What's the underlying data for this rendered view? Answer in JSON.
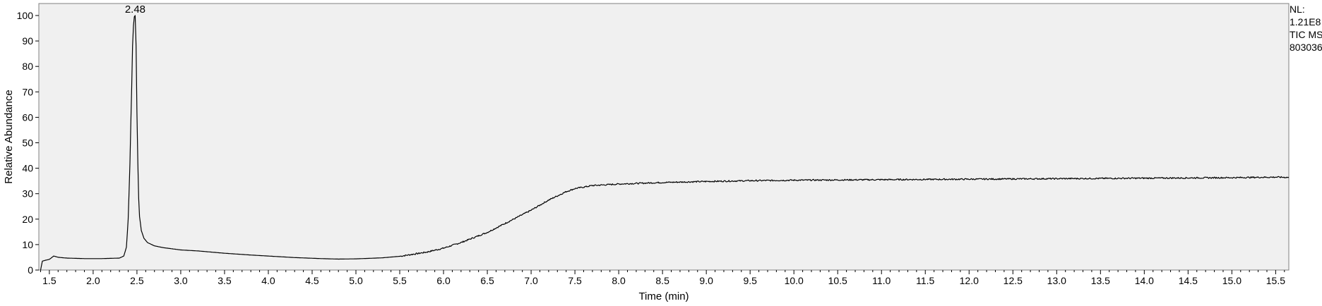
{
  "chart_data": {
    "type": "line",
    "title": "",
    "xlabel": "Time (min)",
    "ylabel": "Relative Abundance",
    "xlim": [
      1.38,
      15.65
    ],
    "ylim": [
      0,
      100
    ],
    "x_ticks": [
      1.5,
      2.0,
      2.5,
      3.0,
      3.5,
      4.0,
      4.5,
      5.0,
      5.5,
      6.0,
      6.5,
      7.0,
      7.5,
      8.0,
      8.5,
      9.0,
      9.5,
      10.0,
      10.5,
      11.0,
      11.5,
      12.0,
      12.5,
      13.0,
      13.5,
      14.0,
      14.5,
      15.0,
      15.5
    ],
    "x_tick_labels": [
      "1.5",
      "2.0",
      "2.5",
      "3.0",
      "3.5",
      "4.0",
      "4.5",
      "5.0",
      "5.5",
      "6.0",
      "6.5",
      "7.0",
      "7.5",
      "8.0",
      "8.5",
      "9.0",
      "9.5",
      "10.0",
      "10.5",
      "11.0",
      "11.5",
      "12.0",
      "12.5",
      "13.0",
      "13.5",
      "14.0",
      "14.5",
      "15.0",
      "15.5"
    ],
    "y_ticks": [
      0,
      10,
      20,
      30,
      40,
      50,
      60,
      70,
      80,
      90,
      100
    ],
    "y_tick_labels": [
      "0",
      "10",
      "20",
      "30",
      "40",
      "50",
      "60",
      "70",
      "80",
      "90",
      "100"
    ],
    "grid": false,
    "series": [
      {
        "x": [
          1.4,
          1.42,
          1.45,
          1.5,
          1.55,
          1.6,
          1.7,
          1.8,
          1.9,
          2.0,
          2.1,
          2.2,
          2.3,
          2.35,
          2.38,
          2.4,
          2.42,
          2.44,
          2.45,
          2.46,
          2.47,
          2.48,
          2.49,
          2.5,
          2.51,
          2.52,
          2.53,
          2.55,
          2.58,
          2.62,
          2.7,
          2.8,
          3.0,
          3.2,
          3.5,
          3.8,
          4.0,
          4.3,
          4.6,
          4.8,
          5.0,
          5.3,
          5.5,
          5.8,
          6.0,
          6.2,
          6.5,
          6.8,
          7.0,
          7.2,
          7.4,
          7.5,
          7.7,
          8.0,
          8.5,
          9.0,
          9.5,
          10.0,
          10.5,
          11.0,
          11.5,
          12.0,
          12.5,
          13.0,
          13.5,
          14.0,
          14.5,
          15.0,
          15.5,
          15.65
        ],
        "y": [
          0.0,
          3.5,
          3.8,
          4.2,
          5.5,
          5.0,
          4.7,
          4.6,
          4.5,
          4.5,
          4.5,
          4.6,
          4.7,
          5.5,
          9.0,
          20.0,
          42.0,
          72.0,
          88.0,
          96.0,
          99.5,
          100.0,
          88.0,
          62.0,
          42.0,
          28.0,
          21.0,
          15.5,
          12.5,
          10.8,
          9.5,
          8.8,
          7.9,
          7.5,
          6.6,
          5.9,
          5.5,
          4.9,
          4.5,
          4.3,
          4.4,
          4.8,
          5.4,
          7.0,
          8.6,
          10.8,
          14.8,
          20.0,
          23.5,
          27.5,
          30.8,
          32.0,
          33.2,
          33.8,
          34.4,
          34.8,
          35.1,
          35.3,
          35.4,
          35.5,
          35.6,
          35.7,
          35.8,
          35.9,
          36.0,
          36.1,
          36.2,
          36.3,
          36.5,
          36.4
        ]
      }
    ],
    "annotations": [
      {
        "x": 2.48,
        "y": 100,
        "text": "2.48"
      }
    ]
  },
  "info_panel": {
    "nl_label": "NL:",
    "nl_value": "1.21E8",
    "filter": "TIC  MS",
    "file_id": "803036"
  },
  "colors": {
    "plot_background": "#f0f0f0",
    "trace": "#000000"
  }
}
